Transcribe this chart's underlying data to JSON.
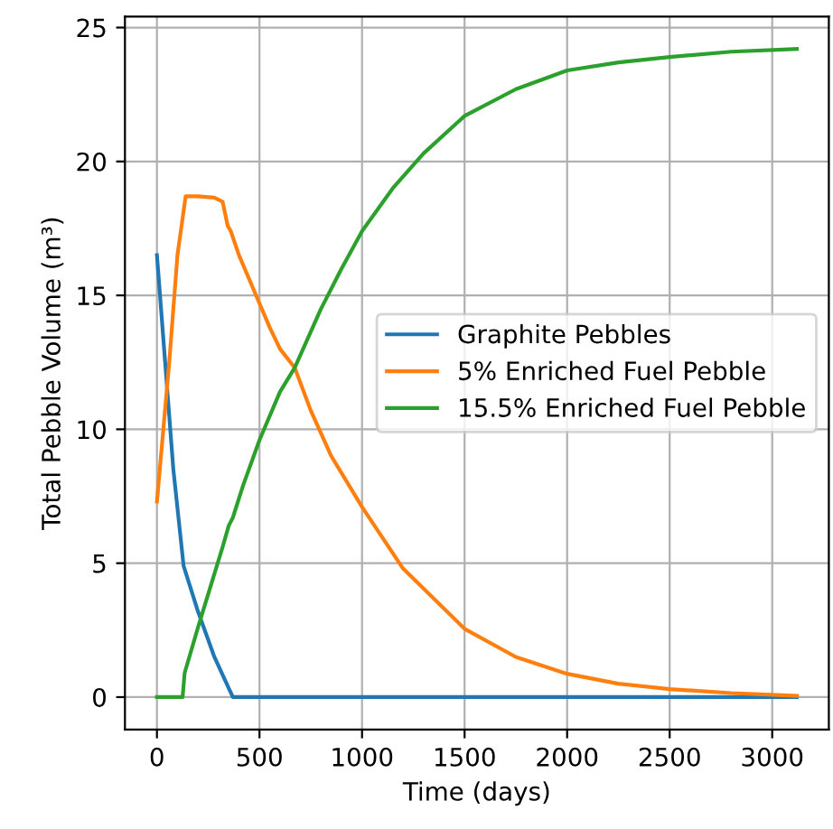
{
  "chart_data": {
    "type": "line",
    "xlabel": "Time (days)",
    "ylabel": "Total Pebble Volume (m³)",
    "xlim": [
      -156,
      3276
    ],
    "ylim": [
      -1.21,
      25.41
    ],
    "xticks": [
      0,
      500,
      1000,
      1500,
      2000,
      2500,
      3000
    ],
    "yticks": [
      0,
      5,
      10,
      15,
      20,
      25
    ],
    "grid": true,
    "legend": "center right",
    "line_style": "solid",
    "marker": "none",
    "series": [
      {
        "name": "Graphite Pebbles",
        "color": "#1f77b4",
        "x": [
          0,
          40,
          80,
          130,
          200,
          280,
          370,
          500,
          1000,
          2000,
          3120
        ],
        "values": [
          16.5,
          12.5,
          8.5,
          4.9,
          3.2,
          1.5,
          0,
          0,
          0,
          0,
          0
        ]
      },
      {
        "name": "5% Enriched Fuel Pebble",
        "color": "#ff7f0e",
        "x": [
          0,
          60,
          100,
          140,
          200,
          280,
          320,
          345,
          360,
          400,
          450,
          500,
          550,
          600,
          672,
          750,
          850,
          1000,
          1200,
          1500,
          1750,
          2000,
          2250,
          2500,
          2800,
          3120
        ],
        "values": [
          7.3,
          12.5,
          16.5,
          18.7,
          18.7,
          18.65,
          18.5,
          17.6,
          17.4,
          16.5,
          15.6,
          14.7,
          13.8,
          13.0,
          12.3,
          10.7,
          9.0,
          7.1,
          4.8,
          2.55,
          1.5,
          0.87,
          0.5,
          0.3,
          0.15,
          0.05
        ]
      },
      {
        "name": "15.5% Enriched Fuel Pebble",
        "color": "#2ca02c",
        "x": [
          0,
          125,
          135,
          200,
          260,
          320,
          350,
          370,
          420,
          500,
          600,
          672,
          800,
          900,
          1000,
          1150,
          1300,
          1500,
          1750,
          2000,
          2250,
          2500,
          2800,
          3120
        ],
        "values": [
          0,
          0,
          0.9,
          2.6,
          4.1,
          5.6,
          6.4,
          6.7,
          7.9,
          9.6,
          11.4,
          12.3,
          14.5,
          16.0,
          17.4,
          19.0,
          20.3,
          21.7,
          22.7,
          23.4,
          23.7,
          23.9,
          24.1,
          24.2
        ]
      }
    ]
  }
}
